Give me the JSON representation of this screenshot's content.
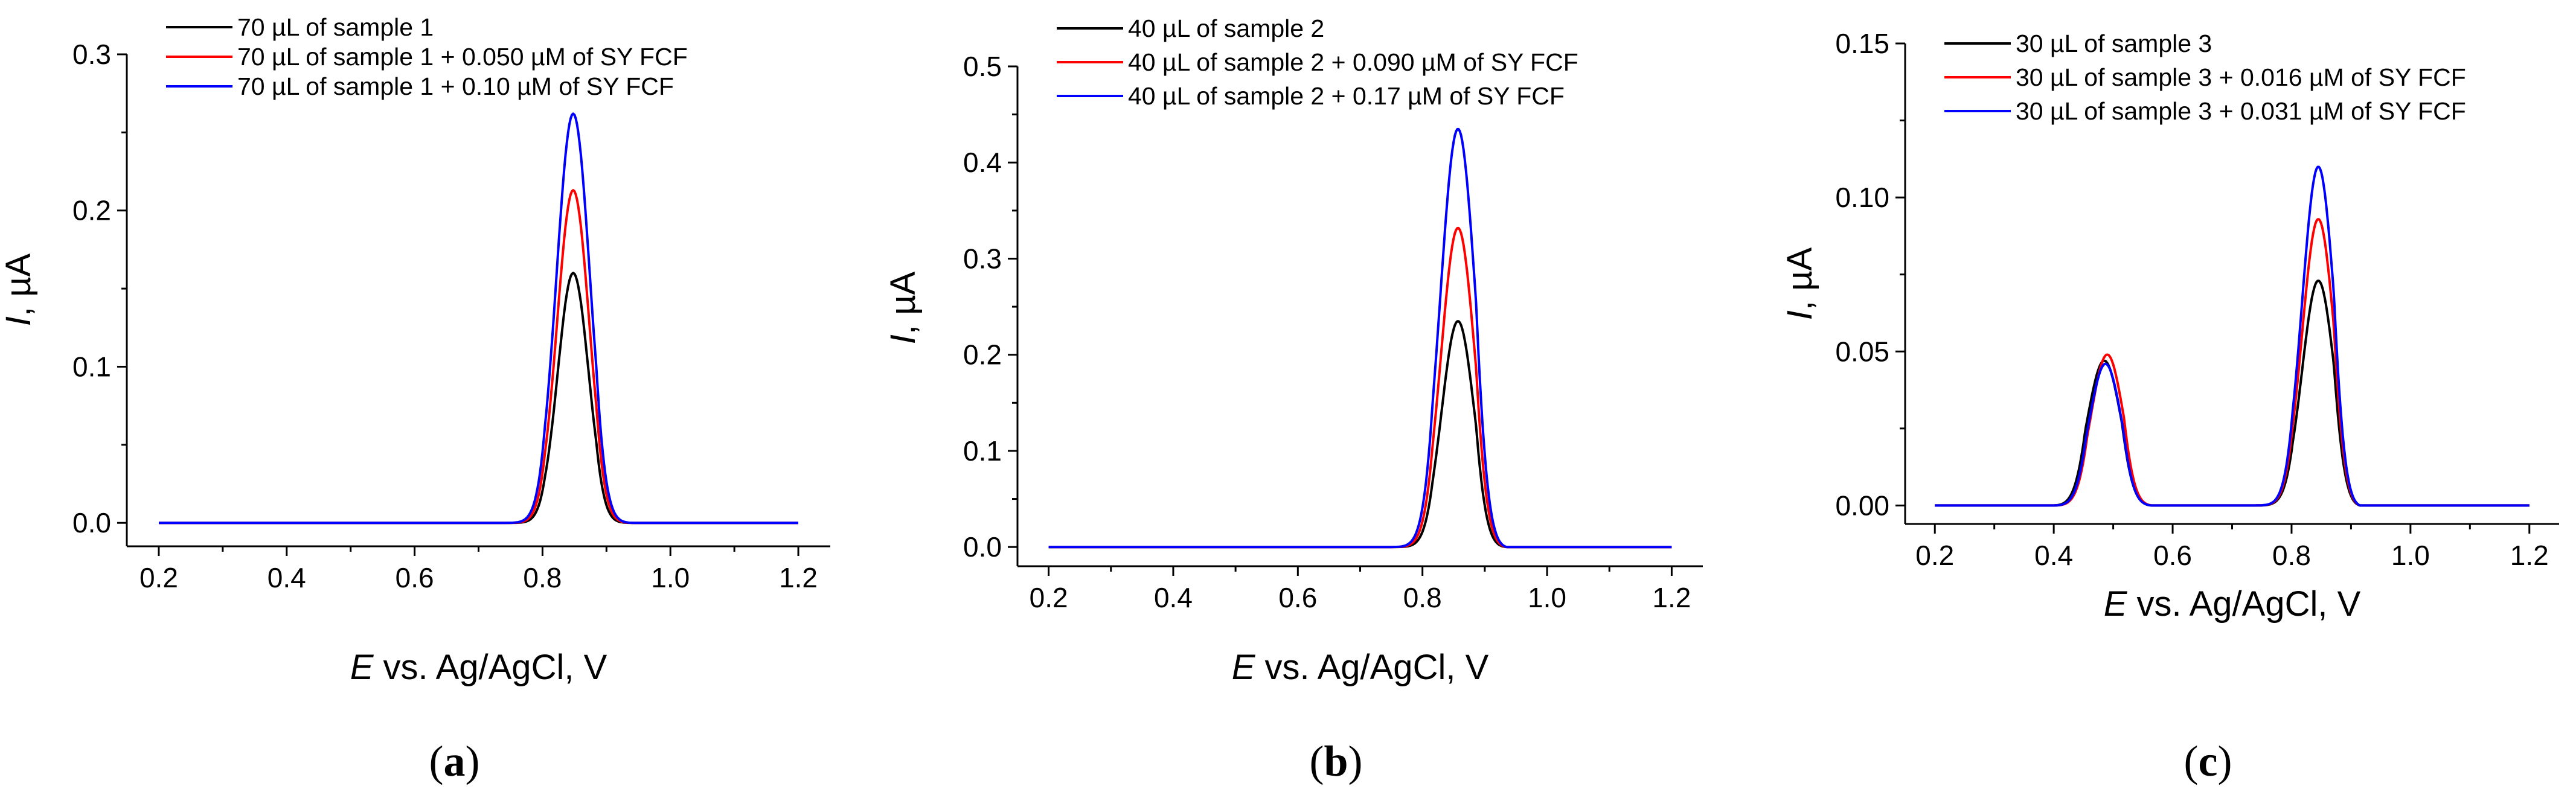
{
  "chart_data": [
    {
      "type": "line",
      "panel_label": "a",
      "xlabel_var": "E",
      "xlabel_rest": " vs. Ag/AgCl, V",
      "ylabel_var": "I",
      "ylabel_rest": ", µA",
      "xlim": [
        0.15,
        1.25
      ],
      "ylim": [
        -0.015,
        0.3
      ],
      "xticks": [
        0.2,
        0.4,
        0.6,
        0.8,
        1.0,
        1.2
      ],
      "xtick_labels": [
        "0.2",
        "0.4",
        "0.6",
        "0.8",
        "1.0",
        "1.2"
      ],
      "yticks": [
        0.0,
        0.1,
        0.2,
        0.3
      ],
      "ytick_labels": [
        "0.0",
        "0.1",
        "0.2",
        "0.3"
      ],
      "x_range": [
        0.2,
        1.2
      ],
      "series": [
        {
          "name": "70 µL of sample 1",
          "color": "#000000",
          "peaks": [
            {
              "center": 0.848,
              "height": 0.16,
              "sigma": 0.024,
              "start": 0.73,
              "end": 0.945
            }
          ]
        },
        {
          "name": "70 µL of sample 1 + 0.050 µM of SY FCF",
          "color": "#ff0000",
          "peaks": [
            {
              "center": 0.848,
              "height": 0.213,
              "sigma": 0.025,
              "start": 0.73,
              "end": 0.945
            }
          ]
        },
        {
          "name": "70 µL of sample 1 + 0.10 µM of SY FCF",
          "color": "#0000ff",
          "peaks": [
            {
              "center": 0.848,
              "height": 0.262,
              "sigma": 0.026,
              "start": 0.73,
              "end": 0.945
            }
          ]
        }
      ]
    },
    {
      "type": "line",
      "panel_label": "b",
      "xlabel_var": "E",
      "xlabel_rest": " vs. Ag/AgCl, V",
      "ylabel_var": "I",
      "ylabel_rest": ", µA",
      "xlim": [
        0.15,
        1.25
      ],
      "ylim": [
        -0.02,
        0.5
      ],
      "xticks": [
        0.2,
        0.4,
        0.6,
        0.8,
        1.0,
        1.2
      ],
      "xtick_labels": [
        "0.2",
        "0.4",
        "0.6",
        "0.8",
        "1.0",
        "1.2"
      ],
      "yticks": [
        0.0,
        0.1,
        0.2,
        0.3,
        0.4,
        0.5
      ],
      "ytick_labels": [
        "0.0",
        "0.1",
        "0.2",
        "0.3",
        "0.4",
        "0.5"
      ],
      "x_range": [
        0.2,
        1.2
      ],
      "series": [
        {
          "name": "40 µL of sample 2",
          "color": "#000000",
          "peaks": [
            {
              "center": 0.857,
              "height": 0.235,
              "sigma": 0.026,
              "start": 0.75,
              "end": 0.935
            }
          ]
        },
        {
          "name": "40 µL of sample 2 + 0.090 µM of SY FCF",
          "color": "#ff0000",
          "peaks": [
            {
              "center": 0.857,
              "height": 0.332,
              "sigma": 0.027,
              "start": 0.75,
              "end": 0.935
            }
          ]
        },
        {
          "name": "40 µL of sample 2 + 0.17 µM of SY FCF",
          "color": "#0000ff",
          "peaks": [
            {
              "center": 0.857,
              "height": 0.435,
              "sigma": 0.028,
              "start": 0.75,
              "end": 0.935
            }
          ]
        }
      ]
    },
    {
      "type": "line",
      "panel_label": "c",
      "xlabel_var": "E",
      "xlabel_rest": " vs. Ag/AgCl, V",
      "ylabel_var": "I",
      "ylabel_rest": ", µA",
      "xlim": [
        0.15,
        1.25
      ],
      "ylim": [
        -0.006,
        0.15
      ],
      "xticks": [
        0.2,
        0.4,
        0.6,
        0.8,
        1.0,
        1.2
      ],
      "xtick_labels": [
        "0.2",
        "0.4",
        "0.6",
        "0.8",
        "1.0",
        "1.2"
      ],
      "yticks": [
        0.0,
        0.05,
        0.1,
        0.15
      ],
      "ytick_labels": [
        "0.00",
        "0.05",
        "0.10",
        "0.15"
      ],
      "x_range": [
        0.2,
        1.2
      ],
      "series": [
        {
          "name": "30 µL of sample 3",
          "color": "#000000",
          "peaks": [
            {
              "center": 0.485,
              "height": 0.047,
              "sigma": 0.028,
              "start": 0.4,
              "end": 0.565
            },
            {
              "center": 0.845,
              "height": 0.073,
              "sigma": 0.027,
              "start": 0.73,
              "end": 0.915
            }
          ]
        },
        {
          "name": "30 µL of sample 3 + 0.016 µM of SY FCF",
          "color": "#ff0000",
          "peaks": [
            {
              "center": 0.49,
              "height": 0.049,
              "sigma": 0.027,
              "start": 0.4,
              "end": 0.565
            },
            {
              "center": 0.845,
              "height": 0.093,
              "sigma": 0.027,
              "start": 0.73,
              "end": 0.915
            }
          ]
        },
        {
          "name": "30 µL of sample 3 + 0.031 µM of SY FCF",
          "color": "#0000ff",
          "peaks": [
            {
              "center": 0.487,
              "height": 0.046,
              "sigma": 0.027,
              "start": 0.4,
              "end": 0.565
            },
            {
              "center": 0.845,
              "height": 0.11,
              "sigma": 0.027,
              "start": 0.73,
              "end": 0.915
            }
          ]
        }
      ]
    }
  ]
}
